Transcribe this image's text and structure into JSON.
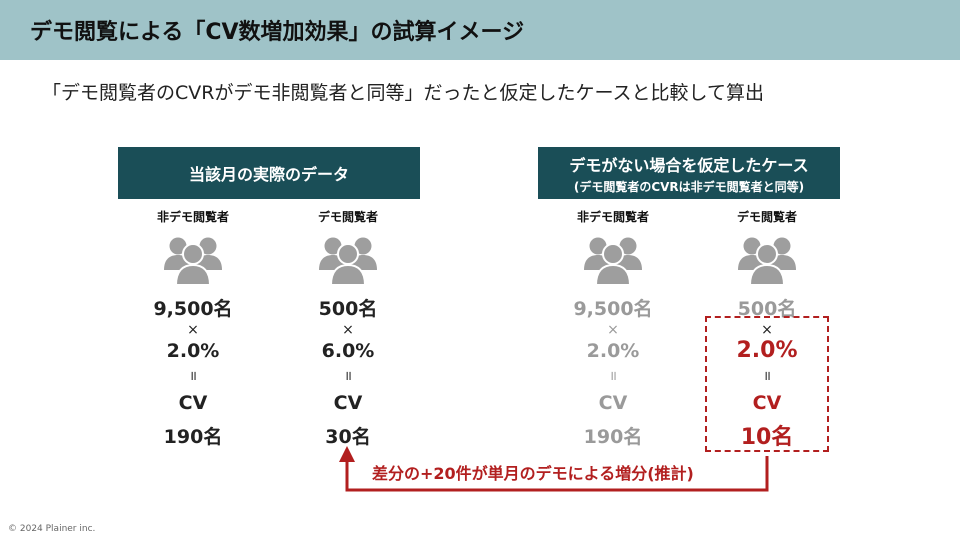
{
  "slide": {
    "title": "デモ閲覧による「CV数増加効果」の試算イメージ",
    "subtitle": "「デモ閲覧者のCVRがデモ非閲覧者と同等」だったと仮定したケースと比較して算出",
    "copyright": "© 2024 Plainer inc."
  },
  "actual": {
    "header": "当該月の実際のデータ",
    "columns": [
      {
        "label": "非デモ閲覧者",
        "visitors": "9,500名",
        "times": "×",
        "rate": "2.0%",
        "equals": "॥",
        "cv": "CV",
        "result": "190名"
      },
      {
        "label": "デモ閲覧者",
        "visitors": "500名",
        "times": "×",
        "rate": "6.0%",
        "equals": "॥",
        "cv": "CV",
        "result": "30名"
      }
    ]
  },
  "hypothetical": {
    "header": "デモがない場合を仮定したケース",
    "subheader": "(デモ閲覧者のCVRは非デモ閲覧者と同等)",
    "columns": [
      {
        "label": "非デモ閲覧者",
        "visitors": "9,500名",
        "times": "×",
        "rate": "2.0%",
        "equals": "॥",
        "cv": "CV",
        "result": "190名"
      },
      {
        "label": "デモ閲覧者",
        "visitors": "500名",
        "times": "×",
        "rate": "2.0%",
        "equals": "॥",
        "cv": "CV",
        "result": "10名"
      }
    ]
  },
  "difference": {
    "text": "差分の+20件が単月のデモによる増分(推計)"
  },
  "colors": {
    "title_bar": "#9fc3c8",
    "header_fill": "#1a4e57",
    "accent_red": "#b21f1f",
    "dim_gray": "#9a9a9a",
    "icon_gray": "#9e9e9e"
  },
  "icons": {
    "people": "people-group-icon"
  }
}
